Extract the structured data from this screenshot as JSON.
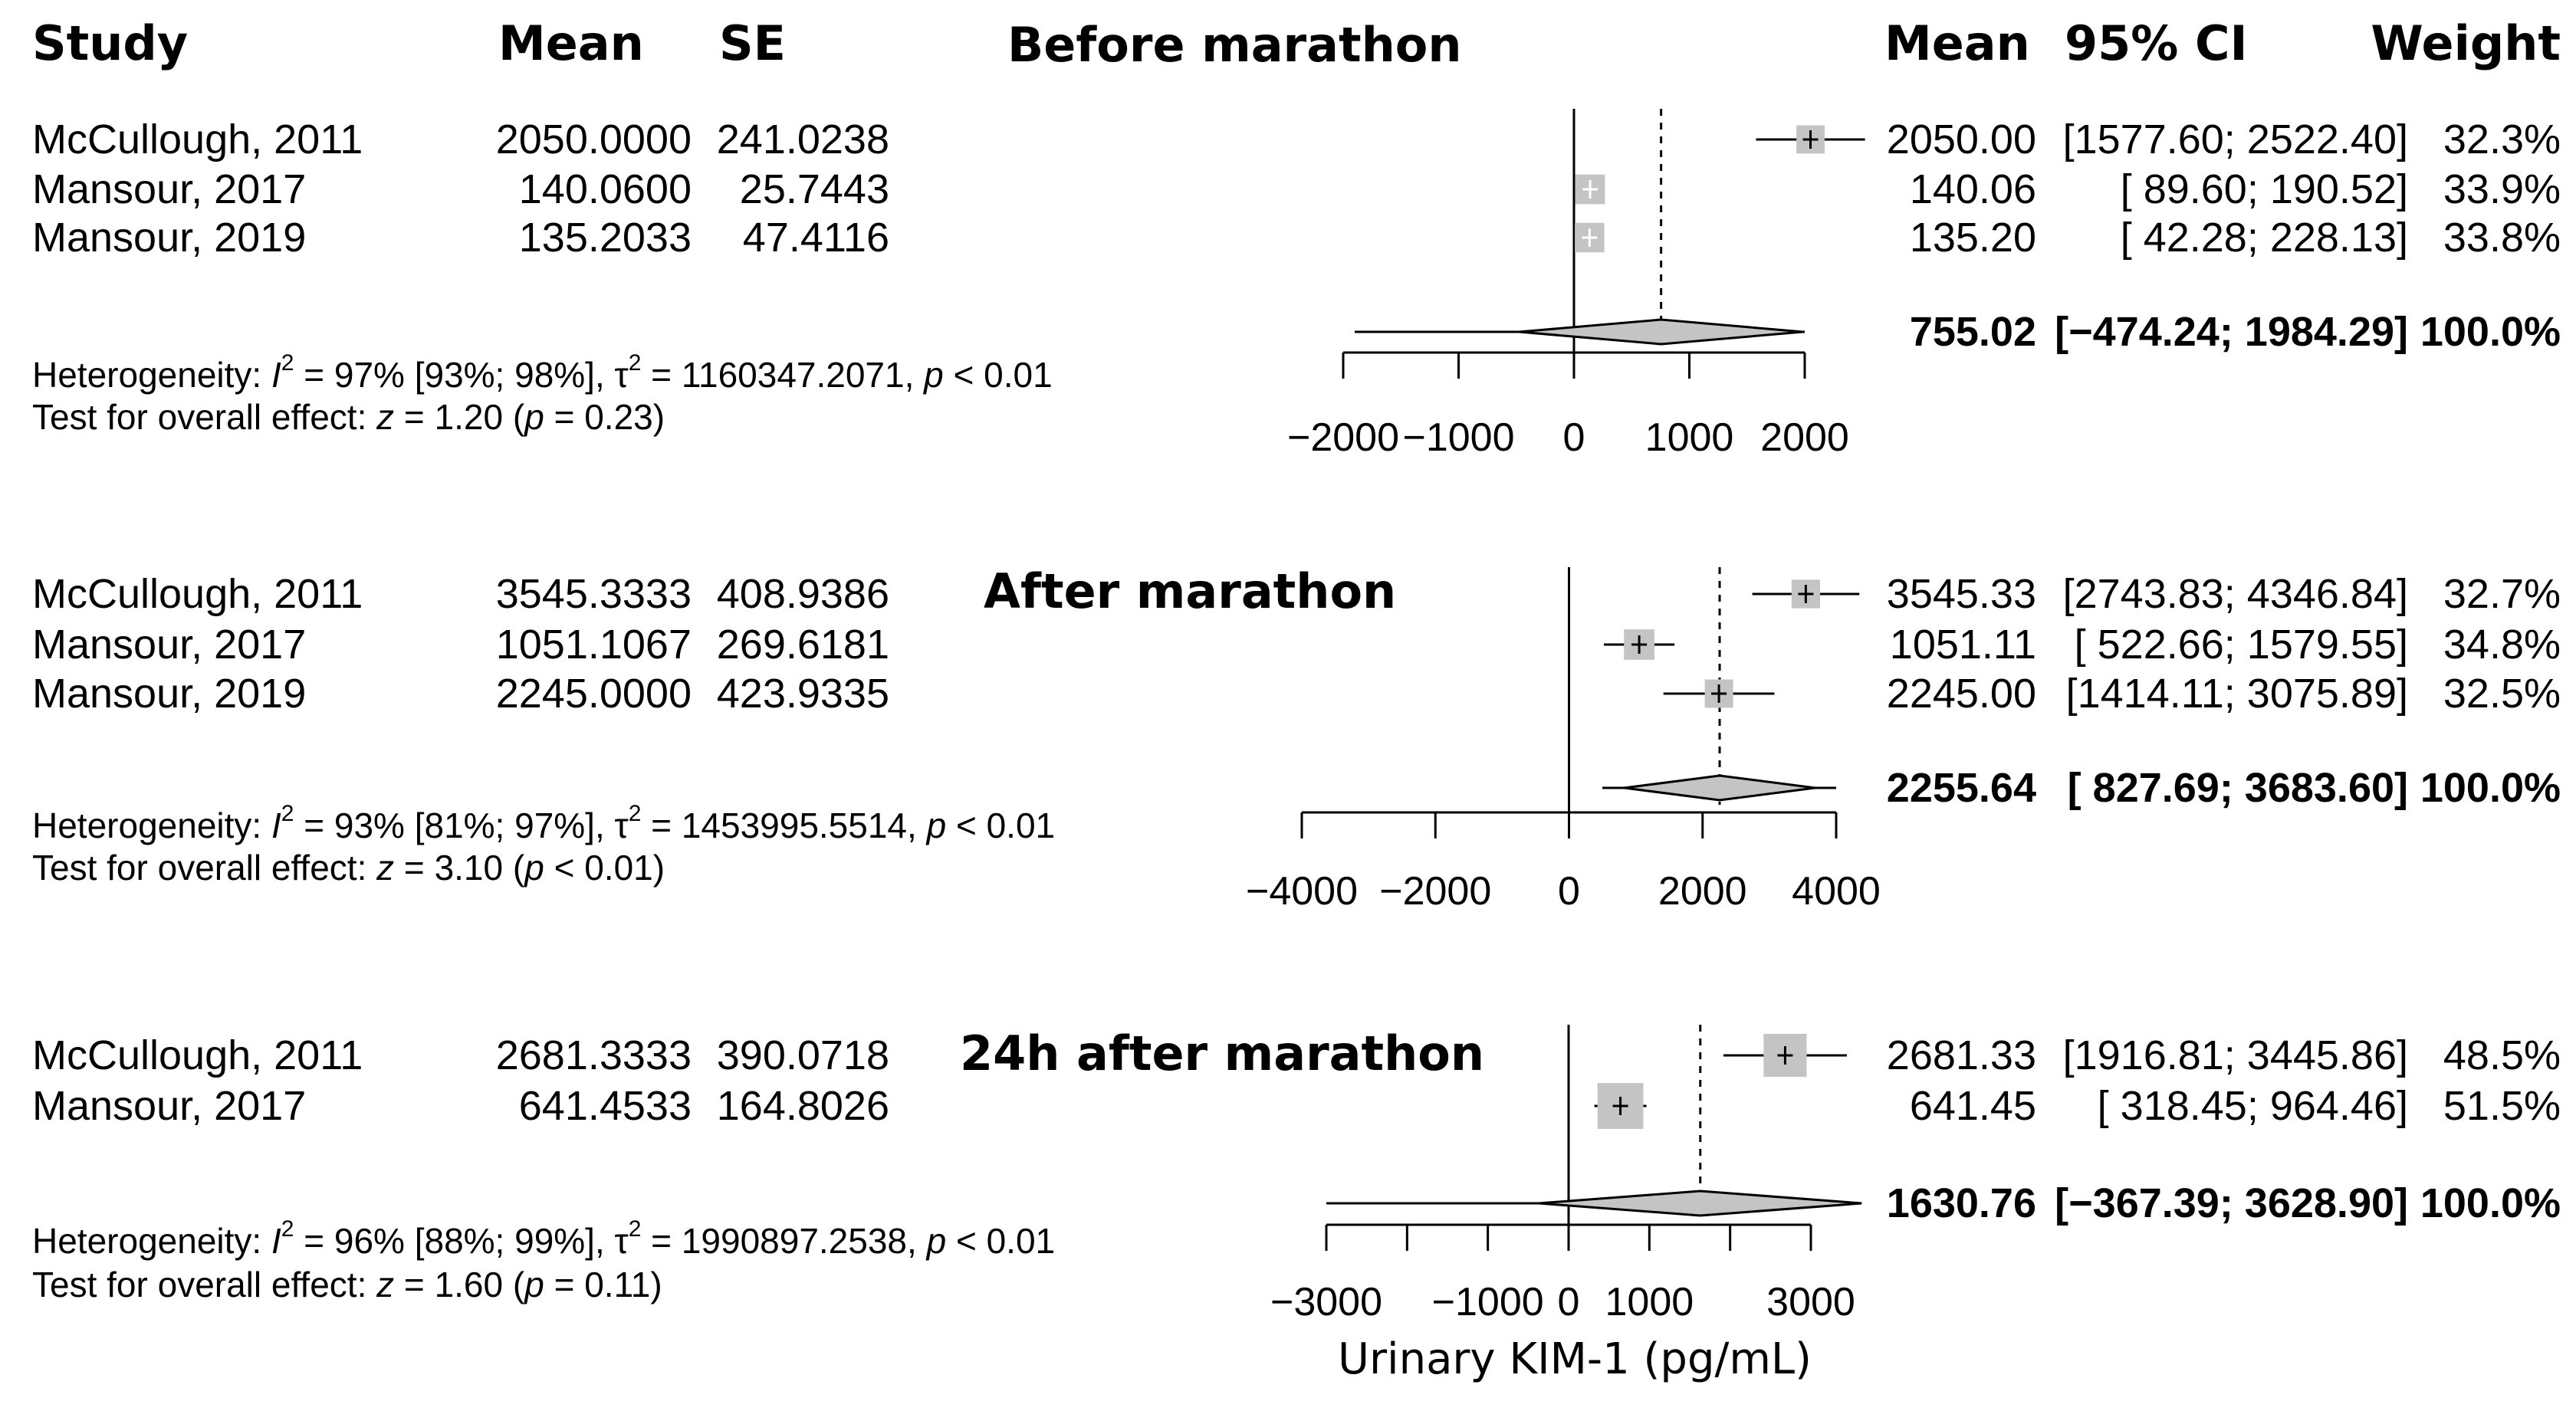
{
  "headers": {
    "study": "Study",
    "mean": "Mean",
    "se": "SE",
    "mean_right": "Mean",
    "ci": "95% CI",
    "weight": "Weight"
  },
  "x_axis_label": "Urinary KIM-1 (pg/mL)",
  "chart_data": [
    {
      "type": "forest",
      "title": "Before marathon",
      "xlim": [
        -2000,
        2000
      ],
      "ticks": [
        "-2000",
        "-1000",
        "0",
        "1000",
        "2000"
      ],
      "tick_labels": [
        "−2000",
        "−1000",
        "0",
        "1000",
        "2000"
      ],
      "studies": [
        {
          "study": "McCullough, 2011",
          "mean": 2050.0,
          "se": 241.0238,
          "mean_txt": "2050.0000",
          "se_txt": "241.0238",
          "est": "2050.00",
          "ci_lo": 1577.6,
          "ci_hi": 2522.4,
          "ci": "[1577.60; 2522.40]",
          "weight": "32.3%",
          "w": 32.3
        },
        {
          "study": "Mansour, 2017",
          "mean": 140.06,
          "se": 25.7443,
          "mean_txt": "140.0600",
          "se_txt": "25.7443",
          "est": "140.06",
          "ci_lo": 89.6,
          "ci_hi": 190.52,
          "ci": "[ 89.60; 190.52]",
          "weight": "33.9%",
          "w": 33.9
        },
        {
          "study": "Mansour, 2019",
          "mean": 135.2033,
          "se": 47.4116,
          "mean_txt": "135.2033",
          "se_txt": "47.4116",
          "est": "135.20",
          "ci_lo": 42.28,
          "ci_hi": 228.13,
          "ci": "[ 42.28; 228.13]",
          "weight": "33.8%",
          "w": 33.8
        }
      ],
      "pooled": {
        "est_val": 755.02,
        "lo": -474.24,
        "hi": 1984.29,
        "pi_lo": -1900,
        "pi_hi": 2000,
        "est": "755.02",
        "ci": "[−474.24; 1984.29]",
        "weight": "100.0%"
      },
      "heterogeneity": {
        "prefix": "Heterogeneity: ",
        "i2": "I",
        "sup": "2",
        "after_i2": " = 97% [93%; 98%], τ",
        "tau_sup": "2",
        "after_tau": " = 1160347.2071, ",
        "p": "p",
        "after_p": " < 0.01"
      },
      "overall": {
        "prefix": "Test for overall effect: ",
        "z": "z",
        "after_z": " = 1.20 (",
        "p": "p",
        "after_p": " = 0.23)"
      }
    },
    {
      "type": "forest",
      "title": "After marathon",
      "xlim": [
        -4000,
        4000
      ],
      "ticks": [
        "-4000",
        "-2000",
        "0",
        "2000",
        "4000"
      ],
      "tick_labels": [
        "−4000",
        "−2000",
        "0",
        "2000",
        "4000"
      ],
      "studies": [
        {
          "study": "McCullough, 2011",
          "mean": 3545.3333,
          "se": 408.9386,
          "mean_txt": "3545.3333",
          "se_txt": "408.9386",
          "est": "3545.33",
          "ci_lo": 2743.83,
          "ci_hi": 4346.84,
          "ci": "[2743.83; 4346.84]",
          "weight": "32.7%",
          "w": 32.7
        },
        {
          "study": "Mansour, 2017",
          "mean": 1051.1067,
          "se": 269.6181,
          "mean_txt": "1051.1067",
          "se_txt": "269.6181",
          "est": "1051.11",
          "ci_lo": 522.66,
          "ci_hi": 1579.55,
          "ci": "[ 522.66; 1579.55]",
          "weight": "34.8%",
          "w": 34.8
        },
        {
          "study": "Mansour, 2019",
          "mean": 2245.0,
          "se": 423.9335,
          "mean_txt": "2245.0000",
          "se_txt": "423.9335",
          "est": "2245.00",
          "ci_lo": 1414.11,
          "ci_hi": 3075.89,
          "ci": "[1414.11; 3075.89]",
          "weight": "32.5%",
          "w": 32.5
        }
      ],
      "pooled": {
        "est_val": 2255.64,
        "lo": 827.69,
        "hi": 3683.6,
        "pi_lo": 500,
        "pi_hi": 4000,
        "est": "2255.64",
        "ci": "[ 827.69; 3683.60]",
        "weight": "100.0%"
      },
      "heterogeneity": {
        "prefix": "Heterogeneity: ",
        "i2": "I",
        "sup": "2",
        "after_i2": " = 93% [81%; 97%], τ",
        "tau_sup": "2",
        "after_tau": " = 1453995.5514, ",
        "p": "p",
        "after_p": " < 0.01"
      },
      "overall": {
        "prefix": "Test for overall effect: ",
        "z": "z",
        "after_z": " = 3.10 (",
        "p": "p",
        "after_p": " < 0.01)"
      }
    },
    {
      "type": "forest",
      "title": "24h after marathon",
      "xlim": [
        -3000,
        3000
      ],
      "ticks": [
        "-3000",
        "-2000",
        "-1000",
        "0",
        "1000",
        "2000",
        "3000"
      ],
      "tick_labels": [
        "−3000",
        "",
        "−1000",
        "0",
        "1000",
        "",
        "3000"
      ],
      "studies": [
        {
          "study": "McCullough, 2011",
          "mean": 2681.3333,
          "se": 390.0718,
          "mean_txt": "2681.3333",
          "se_txt": "390.0718",
          "est": "2681.33",
          "ci_lo": 1916.81,
          "ci_hi": 3445.86,
          "ci": "[1916.81; 3445.86]",
          "weight": "48.5%",
          "w": 48.5
        },
        {
          "study": "Mansour, 2017",
          "mean": 641.4533,
          "se": 164.8026,
          "mean_txt": "641.4533",
          "se_txt": "164.8026",
          "est": "641.45",
          "ci_lo": 318.45,
          "ci_hi": 964.46,
          "ci": "[ 318.45; 964.46]",
          "weight": "51.5%",
          "w": 51.5
        }
      ],
      "pooled": {
        "est_val": 1630.76,
        "lo": -367.39,
        "hi": 3628.9,
        "pi_lo": -3000,
        "pi_hi": 3500,
        "est": "1630.76",
        "ci": "[−367.39; 3628.90]",
        "weight": "100.0%"
      },
      "heterogeneity": {
        "prefix": "Heterogeneity: ",
        "i2": "I",
        "sup": "2",
        "after_i2": " = 96% [88%; 99%], τ",
        "tau_sup": "2",
        "after_tau": " = 1990897.2538, ",
        "p": "p",
        "after_p": " < 0.01"
      },
      "overall": {
        "prefix": "Test for overall effect: ",
        "z": "z",
        "after_z": " = 1.60 (",
        "p": "p",
        "after_p": " = 0.11)"
      }
    }
  ]
}
